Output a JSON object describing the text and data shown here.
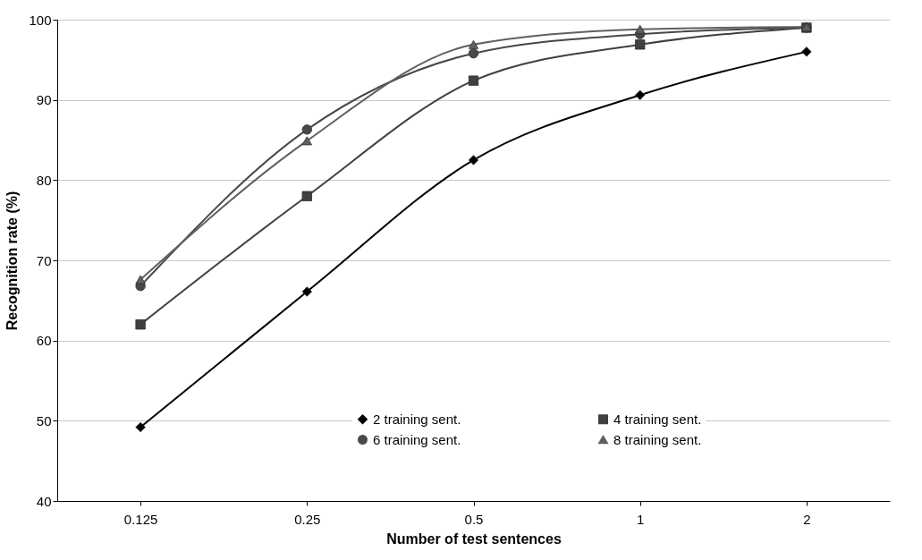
{
  "chart_data": {
    "type": "line",
    "xlabel": "Number of test sentences",
    "ylabel": "Recognition rate (%)",
    "categories": [
      "0.125",
      "0.25",
      "0.5",
      "1",
      "2"
    ],
    "series": [
      {
        "name": "2 training sent.",
        "color": "#000000",
        "marker": "diamond",
        "values": [
          49.2,
          66.1,
          82.5,
          90.6,
          96.0
        ]
      },
      {
        "name": "4 training sent.",
        "color": "#404040",
        "marker": "square",
        "values": [
          62.0,
          78.0,
          92.4,
          96.9,
          99.0
        ]
      },
      {
        "name": "6 training sent.",
        "color": "#484848",
        "marker": "circle",
        "values": [
          66.8,
          86.3,
          95.8,
          98.2,
          99.0
        ]
      },
      {
        "name": "8 training sent.",
        "color": "#606060",
        "marker": "triangle",
        "values": [
          67.6,
          84.9,
          96.9,
          98.8,
          99.1
        ]
      }
    ],
    "ylim": [
      40,
      100
    ],
    "yticks": [
      40,
      50,
      60,
      70,
      80,
      90,
      100
    ],
    "grid": "y",
    "legend": "bottom"
  }
}
